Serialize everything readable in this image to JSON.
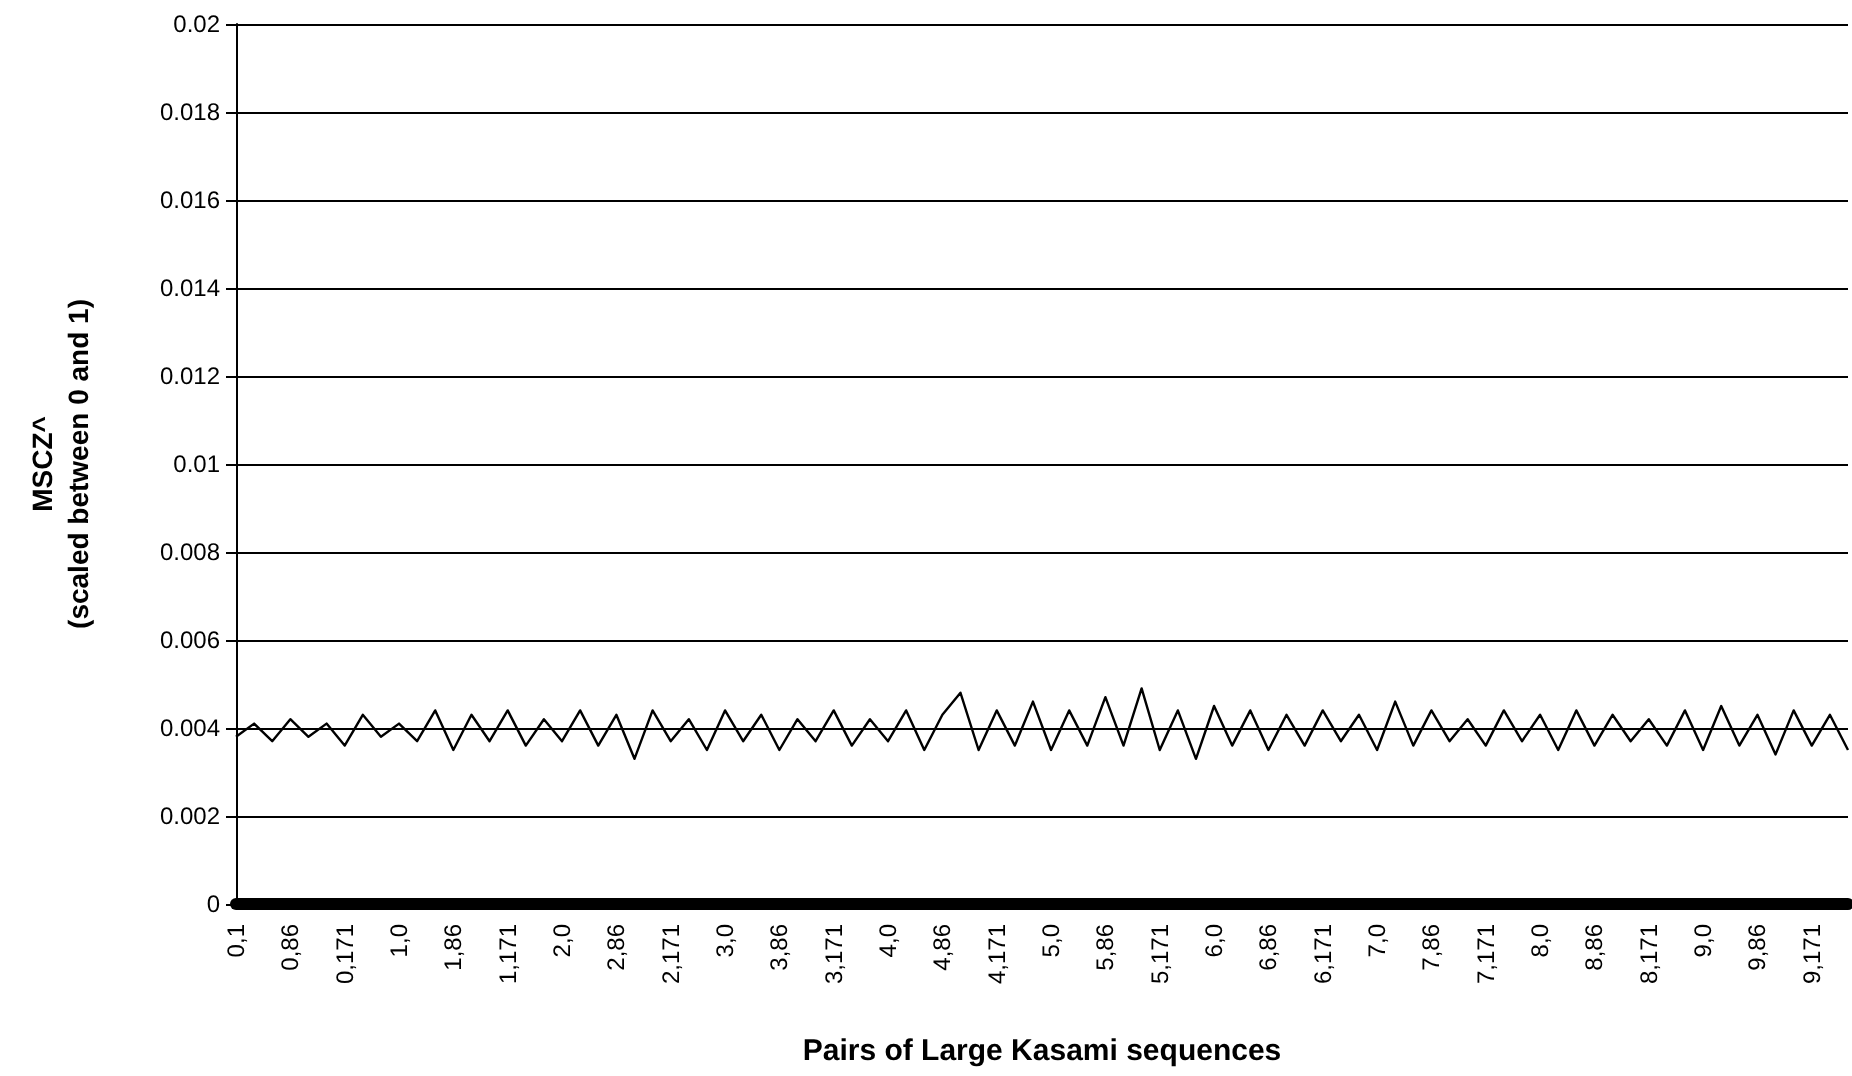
{
  "chart_data": {
    "type": "line",
    "xlabel": "Pairs of Large Kasami sequences",
    "ylabel": "MSCZ^\n(scaled between 0 and 1)",
    "categories": [
      "0,1",
      null,
      null,
      "0,86",
      null,
      null,
      "0,171",
      null,
      null,
      "1,0",
      null,
      null,
      "1,86",
      null,
      null,
      "1,171",
      null,
      null,
      "2,0",
      null,
      null,
      "2,86",
      null,
      null,
      "2,171",
      null,
      null,
      "3,0",
      null,
      null,
      "3,86",
      null,
      null,
      "3,171",
      null,
      null,
      "4,0",
      null,
      null,
      "4,86",
      null,
      null,
      "4,171",
      null,
      null,
      "5,0",
      null,
      null,
      "5,86",
      null,
      null,
      "5,171",
      null,
      null,
      "6,0",
      null,
      null,
      "6,86",
      null,
      null,
      "6,171",
      null,
      null,
      "7,0",
      null,
      null,
      "7,86",
      null,
      null,
      "7,171",
      null,
      null,
      "8,0",
      null,
      null,
      "8,86",
      null,
      null,
      "8,171",
      null,
      null,
      "9,0",
      null,
      null,
      "9,86",
      null,
      null,
      "9,171",
      null,
      null
    ],
    "series": [
      {
        "color": "#000000",
        "values": [
          0.0038,
          0.0041,
          0.0037,
          0.0042,
          0.0038,
          0.0041,
          0.0036,
          0.0043,
          0.0038,
          0.0041,
          0.0037,
          0.0044,
          0.0035,
          0.0043,
          0.0037,
          0.0044,
          0.0036,
          0.0042,
          0.0037,
          0.0044,
          0.0036,
          0.0043,
          0.0033,
          0.0044,
          0.0037,
          0.0042,
          0.0035,
          0.0044,
          0.0037,
          0.0043,
          0.0035,
          0.0042,
          0.0037,
          0.0044,
          0.0036,
          0.0042,
          0.0037,
          0.0044,
          0.0035,
          0.0043,
          0.0048,
          0.0035,
          0.0044,
          0.0036,
          0.0046,
          0.0035,
          0.0044,
          0.0036,
          0.0047,
          0.0036,
          0.0049,
          0.0035,
          0.0044,
          0.0033,
          0.0045,
          0.0036,
          0.0044,
          0.0035,
          0.0043,
          0.0036,
          0.0044,
          0.0037,
          0.0043,
          0.0035,
          0.0046,
          0.0036,
          0.0044,
          0.0037,
          0.0042,
          0.0036,
          0.0044,
          0.0037,
          0.0043,
          0.0035,
          0.0044,
          0.0036,
          0.0043,
          0.0037,
          0.0042,
          0.0036,
          0.0044,
          0.0035,
          0.0045,
          0.0036,
          0.0043,
          0.0034,
          0.0044,
          0.0036,
          0.0043,
          0.0035
        ]
      }
    ],
    "ylim": [
      0,
      0.02
    ],
    "yticks": [
      0,
      0.002,
      0.004,
      0.006,
      0.008,
      0.01,
      0.012,
      0.014,
      0.016,
      0.018,
      0.02
    ],
    "grid": "y",
    "marker": "none",
    "line_style": "solid"
  }
}
